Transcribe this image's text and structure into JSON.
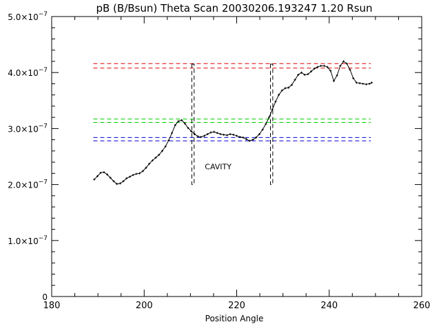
{
  "chart_data": {
    "type": "line",
    "title": "pB (B/Bsun) Theta Scan 20030206.193247 1.20 Rsun",
    "xlabel": "Position Angle",
    "ylabel": "",
    "xlim": [
      180,
      260
    ],
    "ylim": [
      0,
      5e-07
    ],
    "x_ticks": [
      {
        "value": 180,
        "label": "180"
      },
      {
        "value": 200,
        "label": "200"
      },
      {
        "value": 220,
        "label": "220"
      },
      {
        "value": 240,
        "label": "240"
      },
      {
        "value": 260,
        "label": "260"
      }
    ],
    "y_ticks": [
      {
        "value": 0,
        "base": "0",
        "exp": ""
      },
      {
        "value": 1e-07,
        "base": "1.0×10",
        "exp": "−7"
      },
      {
        "value": 2e-07,
        "base": "2.0×10",
        "exp": "−7"
      },
      {
        "value": 3e-07,
        "base": "3.0×10",
        "exp": "−7"
      },
      {
        "value": 4e-07,
        "base": "4.0×10",
        "exp": "−7"
      },
      {
        "value": 5e-07,
        "base": "5.0×10",
        "exp": "−7"
      }
    ],
    "series": [
      {
        "color": "#000000",
        "marker": "plus",
        "x": [
          189.2,
          189.9,
          190.6,
          191.3,
          192.0,
          192.7,
          193.4,
          194.1,
          194.8,
          195.5,
          196.2,
          196.9,
          197.6,
          198.3,
          199.0,
          199.7,
          200.4,
          201.1,
          201.8,
          202.5,
          203.2,
          203.9,
          204.6,
          205.3,
          206.0,
          206.7,
          207.4,
          208.1,
          208.8,
          209.5,
          210.2,
          210.9,
          211.6,
          212.3,
          213.0,
          213.7,
          214.4,
          215.1,
          215.8,
          216.5,
          217.2,
          217.9,
          218.6,
          219.3,
          220.0,
          220.7,
          221.4,
          222.1,
          222.8,
          223.5,
          224.2,
          224.9,
          225.6,
          226.3,
          227.0,
          227.7,
          228.4,
          229.1,
          229.8,
          230.5,
          231.2,
          231.9,
          232.6,
          233.3,
          234.0,
          234.7,
          235.4,
          236.1,
          236.8,
          237.5,
          238.2,
          238.9,
          239.6,
          240.3,
          241.0,
          241.7,
          242.4,
          243.1,
          243.8,
          244.5,
          245.2,
          245.9,
          246.6,
          247.3,
          248.0,
          248.7,
          249.2
        ],
        "y": [
          2.09e-07,
          2.15e-07,
          2.21e-07,
          2.22e-07,
          2.18e-07,
          2.12e-07,
          2.06e-07,
          2.01e-07,
          2.02e-07,
          2.06e-07,
          2.11e-07,
          2.14e-07,
          2.17e-07,
          2.19e-07,
          2.2e-07,
          2.24e-07,
          2.3e-07,
          2.37e-07,
          2.43e-07,
          2.48e-07,
          2.53e-07,
          2.6e-07,
          2.68e-07,
          2.79e-07,
          2.92e-07,
          3.06e-07,
          3.13e-07,
          3.15e-07,
          3.09e-07,
          3.01e-07,
          2.95e-07,
          2.9e-07,
          2.86e-07,
          2.85e-07,
          2.87e-07,
          2.9e-07,
          2.93e-07,
          2.94e-07,
          2.92e-07,
          2.9e-07,
          2.89e-07,
          2.88e-07,
          2.9e-07,
          2.89e-07,
          2.87e-07,
          2.85e-07,
          2.84e-07,
          2.81e-07,
          2.78e-07,
          2.8e-07,
          2.84e-07,
          2.9e-07,
          2.98e-07,
          3.08e-07,
          3.2e-07,
          3.34e-07,
          3.48e-07,
          3.6e-07,
          3.68e-07,
          3.72e-07,
          3.73e-07,
          3.78e-07,
          3.87e-07,
          3.96e-07,
          4e-07,
          3.96e-07,
          3.97e-07,
          4.02e-07,
          4.07e-07,
          4.1e-07,
          4.12e-07,
          4.12e-07,
          4.1e-07,
          4.03e-07,
          3.85e-07,
          3.95e-07,
          4.12e-07,
          4.2e-07,
          4.16e-07,
          4.05e-07,
          3.9e-07,
          3.82e-07,
          3.81e-07,
          3.8e-07,
          3.79e-07,
          3.8e-07,
          3.82e-07
        ]
      }
    ],
    "reference_lines": [
      {
        "color": "#dd0000",
        "y": 4.16e-07,
        "x_range": [
          189,
          249
        ]
      },
      {
        "color": "#dd0000",
        "y": 4.08e-07,
        "x_range": [
          189,
          249
        ]
      },
      {
        "color": "#00cc00",
        "y": 3.17e-07,
        "x_range": [
          189,
          249
        ]
      },
      {
        "color": "#00cc00",
        "y": 3.11e-07,
        "x_range": [
          189,
          249
        ]
      },
      {
        "color": "#0000cc",
        "y": 2.84e-07,
        "x_range": [
          189,
          249
        ]
      },
      {
        "color": "#0000cc",
        "y": 2.78e-07,
        "x_range": [
          189,
          249
        ]
      }
    ],
    "cavity_boundaries": [
      {
        "x": [
          210.3,
          210.8
        ],
        "y_range": [
          2e-07,
          4.15e-07
        ],
        "color": "#000000"
      },
      {
        "x": [
          227.3,
          227.8
        ],
        "y_range": [
          2e-07,
          4.15e-07
        ],
        "color": "#000000"
      }
    ],
    "annotations": [
      {
        "text": "CAVITY",
        "x": 216,
        "y": 2.27e-07,
        "color": "#dd0000"
      }
    ],
    "grid": false,
    "legend": "none"
  }
}
